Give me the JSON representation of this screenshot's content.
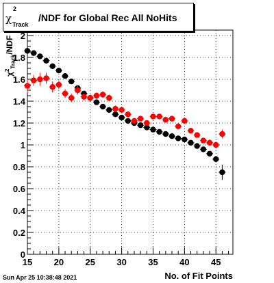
{
  "title": {
    "symbol": "χ",
    "superscript": "2",
    "subscript": "Track",
    "text": "/NDF for Global Rec All NoHits"
  },
  "axis_labels": {
    "y_symbol": "χ",
    "y_superscript": "2",
    "y_subscript": "Track",
    "y_text": "/NDF",
    "x": "No. of Fit Points"
  },
  "timestamp": "Sun Apr 25 10:38:48 2021",
  "chart_data": {
    "type": "scatter",
    "title": "χ²Track/NDF for Global Rec All NoHits",
    "xlabel": "No. of Fit Points",
    "ylabel": "χ²Track/NDF",
    "xlim": [
      15,
      47.7
    ],
    "ylim": [
      0,
      2.05
    ],
    "x_ticks": [
      15,
      20,
      25,
      30,
      35,
      40,
      45
    ],
    "y_ticks": [
      0,
      0.2,
      0.4,
      0.6,
      0.8,
      1,
      1.2,
      1.4,
      1.6,
      1.8,
      2
    ],
    "y_tick_labels": [
      "0",
      "0.2",
      "0.4",
      "0.6",
      "0.8",
      "1",
      "1.2",
      "1.4",
      "1.6",
      "1.8",
      "2"
    ],
    "x_tick_labels": [
      "15",
      "20",
      "25",
      "30",
      "35",
      "40",
      "45"
    ],
    "grid": true,
    "series": [
      {
        "color": "#000000",
        "x": [
          15,
          16,
          17,
          18,
          19,
          20,
          21,
          22,
          23,
          24,
          25,
          26,
          27,
          28,
          29,
          30,
          31,
          32,
          33,
          34,
          35,
          36,
          37,
          38,
          39,
          40,
          41,
          42,
          43,
          44,
          45,
          46
        ],
        "y": [
          1.86,
          1.84,
          1.81,
          1.77,
          1.72,
          1.68,
          1.63,
          1.58,
          1.52,
          1.47,
          1.43,
          1.39,
          1.35,
          1.32,
          1.28,
          1.25,
          1.22,
          1.2,
          1.18,
          1.16,
          1.14,
          1.12,
          1.1,
          1.08,
          1.06,
          1.05,
          1.02,
          0.99,
          0.96,
          0.92,
          0.87,
          0.75
        ],
        "err": [
          0.01,
          0.01,
          0.01,
          0.01,
          0.01,
          0.01,
          0.01,
          0.01,
          0.01,
          0.01,
          0.01,
          0.01,
          0.01,
          0.01,
          0.01,
          0.01,
          0.01,
          0.01,
          0.01,
          0.01,
          0.01,
          0.01,
          0.01,
          0.01,
          0.01,
          0.01,
          0.01,
          0.01,
          0.01,
          0.02,
          0.03,
          0.07
        ]
      },
      {
        "color": "#ff0000",
        "x": [
          15,
          16,
          17,
          18,
          19,
          20,
          21,
          22,
          23,
          24,
          25,
          26,
          27,
          28,
          29,
          30,
          31,
          32,
          33,
          34,
          35,
          36,
          37,
          38,
          39,
          40,
          41,
          42,
          43,
          44,
          45,
          46
        ],
        "y": [
          1.54,
          1.59,
          1.6,
          1.61,
          1.53,
          1.55,
          1.47,
          1.43,
          1.5,
          1.44,
          1.43,
          1.45,
          1.46,
          1.43,
          1.33,
          1.32,
          1.28,
          1.22,
          1.24,
          1.2,
          1.26,
          1.26,
          1.23,
          1.24,
          1.17,
          1.22,
          1.13,
          1.09,
          1.04,
          1.02,
          1.0,
          1.1
        ],
        "err": [
          0.06,
          0.05,
          0.06,
          0.05,
          0.05,
          0.04,
          0.04,
          0.04,
          0.04,
          0.03,
          0.03,
          0.03,
          0.03,
          0.03,
          0.03,
          0.03,
          0.02,
          0.02,
          0.02,
          0.02,
          0.02,
          0.02,
          0.02,
          0.02,
          0.02,
          0.02,
          0.02,
          0.02,
          0.02,
          0.03,
          0.03,
          0.04
        ]
      }
    ]
  }
}
